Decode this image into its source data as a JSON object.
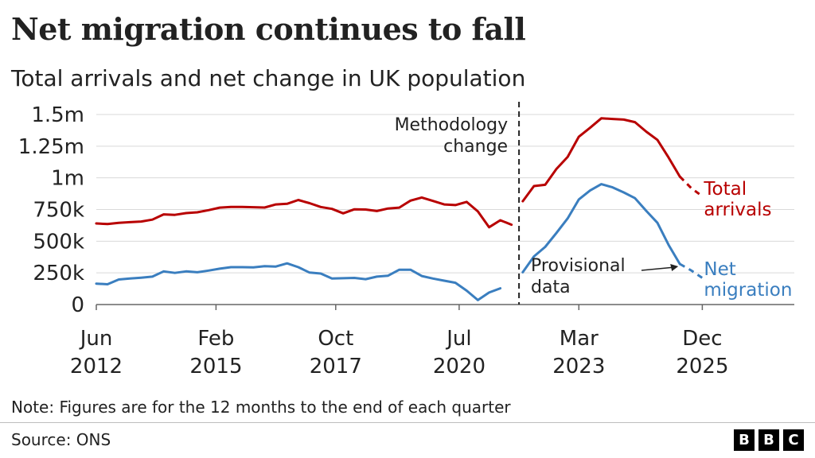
{
  "header": {
    "title": "Net migration continues to fall",
    "subtitle": "Total arrivals and net change in UK population"
  },
  "footer": {
    "note": "Note: Figures are for the 12 months to the end of each quarter",
    "source": "Source: ONS",
    "logo": [
      "B",
      "B",
      "C"
    ]
  },
  "colors": {
    "arrivals": "#b80000",
    "net": "#3a7ebf",
    "grid": "#d9d9d9",
    "text": "#222222"
  },
  "chart_data": {
    "type": "line",
    "title": "Net migration continues to fall",
    "subtitle": "Total arrivals and net change in UK population",
    "ylim": [
      0,
      1500000
    ],
    "y_ticks": [
      {
        "value": 0,
        "label": "0"
      },
      {
        "value": 250000,
        "label": "250k"
      },
      {
        "value": 500000,
        "label": "500k"
      },
      {
        "value": 750000,
        "label": "750k"
      },
      {
        "value": 1000000,
        "label": "1m"
      },
      {
        "value": 1250000,
        "label": "1.25m"
      },
      {
        "value": 1500000,
        "label": "1.5m"
      }
    ],
    "xlim": [
      "2012-06",
      "2026-12"
    ],
    "x_ticks": [
      {
        "date": "2012-06",
        "line1": "Jun",
        "line2": "2012"
      },
      {
        "date": "2015-02",
        "line1": "Feb",
        "line2": "2015"
      },
      {
        "date": "2017-10",
        "line1": "Oct",
        "line2": "2017"
      },
      {
        "date": "2020-07",
        "line1": "Jul",
        "line2": "2020"
      },
      {
        "date": "2023-03",
        "line1": "Mar",
        "line2": "2023"
      },
      {
        "date": "2025-12",
        "line1": "Dec",
        "line2": "2025"
      }
    ],
    "grid": true,
    "series": [
      {
        "name": "Total arrivals",
        "label_lines": [
          "Total",
          "arrivals"
        ],
        "color": "#b80000",
        "segments": [
          {
            "style": "solid",
            "points": [
              [
                "2012-06",
                640000
              ],
              [
                "2012-09",
                635000
              ],
              [
                "2012-12",
                645000
              ],
              [
                "2013-03",
                650000
              ],
              [
                "2013-06",
                655000
              ],
              [
                "2013-09",
                670000
              ],
              [
                "2013-12",
                712000
              ],
              [
                "2014-03",
                708000
              ],
              [
                "2014-06",
                722000
              ],
              [
                "2014-09",
                728000
              ],
              [
                "2014-12",
                745000
              ],
              [
                "2015-03",
                765000
              ],
              [
                "2015-06",
                770000
              ],
              [
                "2015-09",
                770000
              ],
              [
                "2015-12",
                768000
              ],
              [
                "2016-03",
                766000
              ],
              [
                "2016-06",
                790000
              ],
              [
                "2016-09",
                795000
              ],
              [
                "2016-12",
                825000
              ],
              [
                "2017-03",
                800000
              ],
              [
                "2017-06",
                770000
              ],
              [
                "2017-09",
                755000
              ],
              [
                "2017-12",
                720000
              ],
              [
                "2018-03",
                752000
              ],
              [
                "2018-06",
                750000
              ],
              [
                "2018-09",
                738000
              ],
              [
                "2018-12",
                758000
              ],
              [
                "2019-03",
                765000
              ],
              [
                "2019-06",
                820000
              ],
              [
                "2019-09",
                845000
              ],
              [
                "2019-12",
                818000
              ],
              [
                "2020-03",
                790000
              ],
              [
                "2020-06",
                785000
              ],
              [
                "2020-09",
                810000
              ],
              [
                "2020-12",
                735000
              ],
              [
                "2021-03",
                610000
              ],
              [
                "2021-06",
                665000
              ],
              [
                "2021-09",
                630000
              ]
            ]
          },
          {
            "style": "solid",
            "points": [
              [
                "2021-12",
                815000
              ],
              [
                "2022-03",
                935000
              ],
              [
                "2022-06",
                945000
              ],
              [
                "2022-09",
                1070000
              ],
              [
                "2022-12",
                1165000
              ],
              [
                "2023-03",
                1325000
              ],
              [
                "2023-06",
                1395000
              ],
              [
                "2023-09",
                1470000
              ],
              [
                "2023-12",
                1465000
              ],
              [
                "2024-03",
                1460000
              ],
              [
                "2024-06",
                1440000
              ],
              [
                "2024-09",
                1365000
              ],
              [
                "2024-12",
                1300000
              ],
              [
                "2025-03",
                1160000
              ],
              [
                "2025-06",
                1010000
              ]
            ]
          },
          {
            "style": "dashed",
            "points": [
              [
                "2025-06",
                1010000
              ],
              [
                "2025-09",
                920000
              ],
              [
                "2025-12",
                855000
              ]
            ]
          }
        ]
      },
      {
        "name": "Net migration",
        "label_lines": [
          "Net",
          "migration"
        ],
        "color": "#3a7ebf",
        "segments": [
          {
            "style": "solid",
            "points": [
              [
                "2012-06",
                165000
              ],
              [
                "2012-09",
                160000
              ],
              [
                "2012-12",
                198000
              ],
              [
                "2013-03",
                205000
              ],
              [
                "2013-06",
                212000
              ],
              [
                "2013-09",
                220000
              ],
              [
                "2013-12",
                262000
              ],
              [
                "2014-03",
                250000
              ],
              [
                "2014-06",
                262000
              ],
              [
                "2014-09",
                255000
              ],
              [
                "2014-12",
                268000
              ],
              [
                "2015-03",
                283000
              ],
              [
                "2015-06",
                295000
              ],
              [
                "2015-09",
                295000
              ],
              [
                "2015-12",
                293000
              ],
              [
                "2016-03",
                303000
              ],
              [
                "2016-06",
                300000
              ],
              [
                "2016-09",
                325000
              ],
              [
                "2016-12",
                295000
              ],
              [
                "2017-03",
                252000
              ],
              [
                "2017-06",
                245000
              ],
              [
                "2017-09",
                205000
              ],
              [
                "2017-12",
                208000
              ],
              [
                "2018-03",
                210000
              ],
              [
                "2018-06",
                200000
              ],
              [
                "2018-09",
                220000
              ],
              [
                "2018-12",
                228000
              ],
              [
                "2019-03",
                275000
              ],
              [
                "2019-06",
                275000
              ],
              [
                "2019-09",
                225000
              ],
              [
                "2019-12",
                205000
              ],
              [
                "2020-03",
                188000
              ],
              [
                "2020-06",
                172000
              ],
              [
                "2020-09",
                110000
              ],
              [
                "2020-12",
                35000
              ],
              [
                "2021-03",
                95000
              ],
              [
                "2021-06",
                128000
              ]
            ]
          },
          {
            "style": "solid",
            "points": [
              [
                "2021-12",
                255000
              ],
              [
                "2022-03",
                380000
              ],
              [
                "2022-06",
                455000
              ],
              [
                "2022-09",
                565000
              ],
              [
                "2022-12",
                680000
              ],
              [
                "2023-03",
                830000
              ],
              [
                "2023-06",
                900000
              ],
              [
                "2023-09",
                950000
              ],
              [
                "2023-12",
                925000
              ],
              [
                "2024-03",
                885000
              ],
              [
                "2024-06",
                840000
              ],
              [
                "2024-09",
                740000
              ],
              [
                "2024-12",
                645000
              ],
              [
                "2025-03",
                470000
              ],
              [
                "2025-06",
                320000
              ]
            ]
          },
          {
            "style": "dashed",
            "points": [
              [
                "2025-06",
                320000
              ],
              [
                "2025-09",
                270000
              ],
              [
                "2025-12",
                210000
              ]
            ]
          }
        ]
      }
    ],
    "annotations": [
      {
        "type": "vline",
        "date": "2021-11",
        "label_lines": [
          "Methodology",
          "change"
        ]
      },
      {
        "type": "callout",
        "date": "2025-06",
        "value": 320000,
        "label_lines": [
          "Provisional",
          "data"
        ]
      }
    ]
  }
}
